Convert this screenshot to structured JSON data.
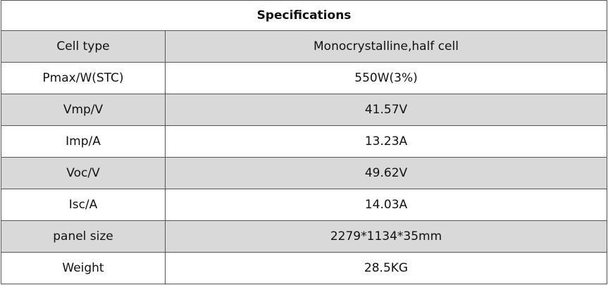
{
  "table": {
    "title": "Specifications",
    "rows": [
      [
        "Cell type",
        "Monocrystalline,half cell"
      ],
      [
        "Pmax/W(STC)",
        "550W(3%)"
      ],
      [
        "Vmp/V",
        "41.57V"
      ],
      [
        "Imp/A",
        "13.23A"
      ],
      [
        "Voc/V",
        "49.62V"
      ],
      [
        "Isc/A",
        "14.03A"
      ],
      [
        "panel size",
        "2279*1134*35mm"
      ],
      [
        "Weight",
        "28.5KG"
      ]
    ]
  }
}
